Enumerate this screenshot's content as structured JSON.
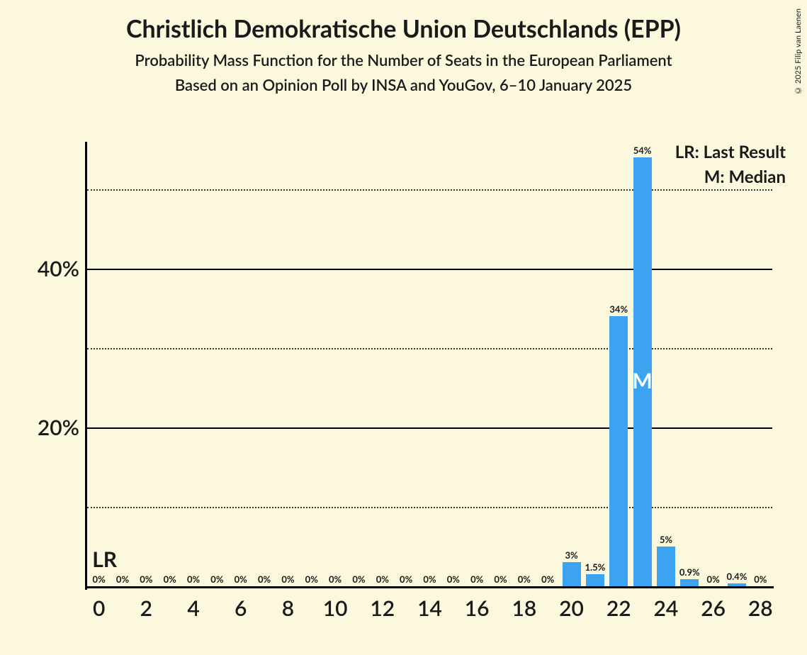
{
  "title": "Christlich Demokratische Union Deutschlands (EPP)",
  "subtitle1": "Probability Mass Function for the Number of Seats in the European Parliament",
  "subtitle2": "Based on an Opinion Poll by INSA and YouGov, 6–10 January 2025",
  "legend": {
    "lr": "LR: Last Result",
    "m": "M: Median"
  },
  "copyright": "© 2025 Filip van Laenen",
  "chart": {
    "type": "bar",
    "background_color": "#fcf8dd",
    "bar_color": "#3ba3f0",
    "axis_color": "#000000",
    "text_color": "#1a1a1a",
    "ylim_max": 56,
    "y_ticks_major": [
      20,
      40
    ],
    "y_ticks_minor": [
      10,
      30,
      50
    ],
    "y_tick_format": "%",
    "title_fontsize": 34,
    "subtitle_fontsize": 22,
    "axis_label_fontsize": 30,
    "bar_label_fontsize": 13,
    "bar_width_ratio": 0.78,
    "x_categories": [
      0,
      1,
      2,
      3,
      4,
      5,
      6,
      7,
      8,
      9,
      10,
      11,
      12,
      13,
      14,
      15,
      16,
      17,
      18,
      19,
      20,
      21,
      22,
      23,
      24,
      25,
      26,
      27,
      28
    ],
    "x_tick_labels": [
      0,
      2,
      4,
      6,
      8,
      10,
      12,
      14,
      16,
      18,
      20,
      22,
      24,
      26,
      28
    ],
    "values": [
      0,
      0,
      0,
      0,
      0,
      0,
      0,
      0,
      0,
      0,
      0,
      0,
      0,
      0,
      0,
      0,
      0,
      0,
      0,
      0,
      3,
      1.5,
      34,
      54,
      5,
      0.9,
      0,
      0.4,
      0
    ],
    "value_labels": [
      "0%",
      "0%",
      "0%",
      "0%",
      "0%",
      "0%",
      "0%",
      "0%",
      "0%",
      "0%",
      "0%",
      "0%",
      "0%",
      "0%",
      "0%",
      "0%",
      "0%",
      "0%",
      "0%",
      "0%",
      "3%",
      "1.5%",
      "34%",
      "54%",
      "5%",
      "0.9%",
      "0%",
      "0.4%",
      "0%"
    ],
    "lr_index": 0,
    "median_index": 23,
    "lr_marker": "LR",
    "median_marker": "M"
  }
}
